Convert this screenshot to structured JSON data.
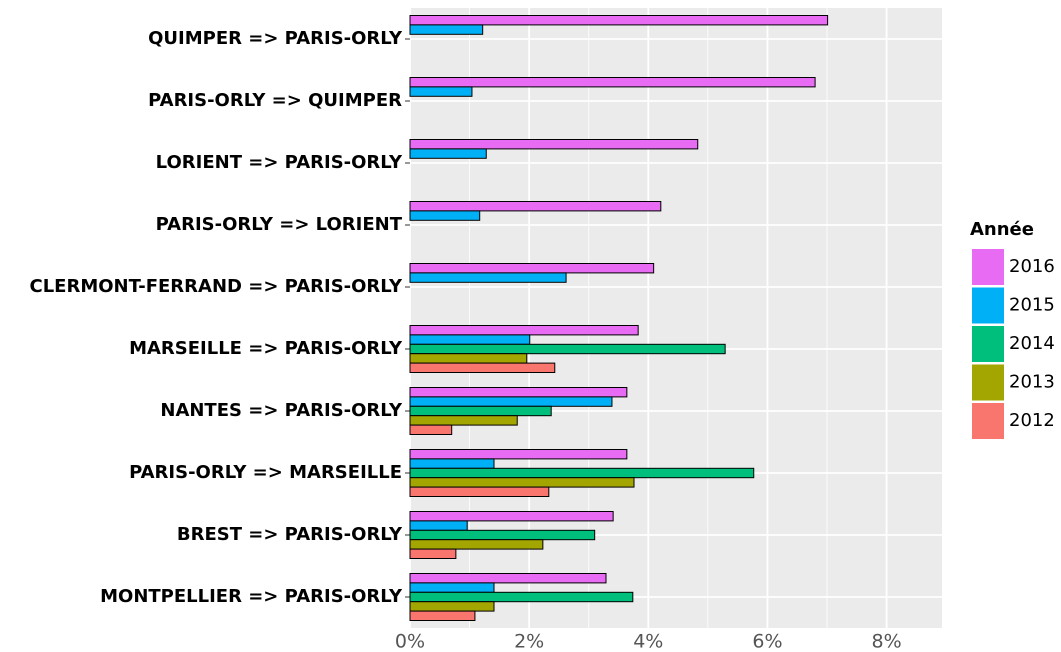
{
  "chart_data": {
    "type": "bar",
    "orientation": "horizontal",
    "categories": [
      "QUIMPER => PARIS-ORLY",
      "PARIS-ORLY => QUIMPER",
      "LORIENT => PARIS-ORLY",
      "PARIS-ORLY => LORIENT",
      "CLERMONT-FERRAND => PARIS-ORLY",
      "MARSEILLE => PARIS-ORLY",
      "NANTES => PARIS-ORLY",
      "PARIS-ORLY => MARSEILLE",
      "BREST => PARIS-ORLY",
      "MONTPELLIER => PARIS-ORLY"
    ],
    "legend_title": "Année",
    "series": [
      {
        "name": "2016",
        "color": "#E76BF3",
        "values": [
          7.01,
          6.8,
          4.83,
          4.21,
          4.09,
          3.83,
          3.64,
          3.64,
          3.41,
          3.29
        ]
      },
      {
        "name": "2015",
        "color": "#00B0F6",
        "values": [
          1.22,
          1.04,
          1.28,
          1.17,
          2.62,
          2.01,
          3.39,
          1.41,
          0.96,
          1.41
        ]
      },
      {
        "name": "2014",
        "color": "#00BF7D",
        "values": [
          null,
          null,
          null,
          null,
          null,
          5.29,
          2.37,
          5.77,
          3.1,
          3.74
        ]
      },
      {
        "name": "2013",
        "color": "#A3A500",
        "values": [
          null,
          null,
          null,
          null,
          null,
          1.96,
          1.8,
          3.76,
          2.23,
          1.41
        ]
      },
      {
        "name": "2012",
        "color": "#F8766D",
        "values": [
          null,
          null,
          null,
          null,
          null,
          2.43,
          0.7,
          2.33,
          0.77,
          1.09
        ]
      }
    ],
    "xlim": [
      0,
      8.93
    ],
    "xticks": [
      {
        "value": 0,
        "label": "0%"
      },
      {
        "value": 2,
        "label": "2%"
      },
      {
        "value": 4,
        "label": "4%"
      },
      {
        "value": 6,
        "label": "6%"
      },
      {
        "value": 8,
        "label": "8%"
      }
    ],
    "grid": true,
    "legend_position": "right"
  }
}
